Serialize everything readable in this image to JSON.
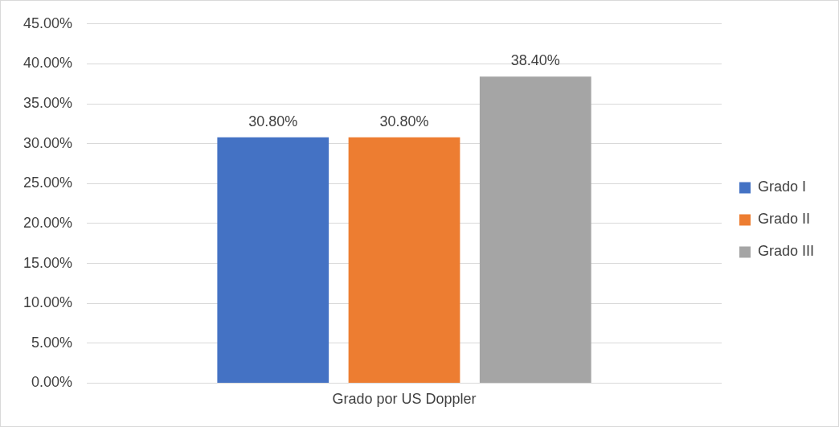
{
  "chart_data": {
    "type": "bar",
    "categories": [
      "Grado por US Doppler"
    ],
    "series": [
      {
        "name": "Grado I",
        "color": "#4472c4",
        "values": [
          30.8
        ],
        "value_labels": [
          "30.80%"
        ]
      },
      {
        "name": "Grado II",
        "color": "#ed7d31",
        "values": [
          30.8
        ],
        "value_labels": [
          "30.80%"
        ]
      },
      {
        "name": "Grado III",
        "color": "#a5a5a5",
        "values": [
          38.4
        ],
        "value_labels": [
          "38.40%"
        ]
      }
    ],
    "ylim": [
      0,
      45
    ],
    "yticks": [
      {
        "value": 0,
        "label": "0.00%"
      },
      {
        "value": 5,
        "label": "5.00%"
      },
      {
        "value": 10,
        "label": "10.00%"
      },
      {
        "value": 15,
        "label": "15.00%"
      },
      {
        "value": 20,
        "label": "20.00%"
      },
      {
        "value": 25,
        "label": "25.00%"
      },
      {
        "value": 30,
        "label": "30.00%"
      },
      {
        "value": 35,
        "label": "35.00%"
      },
      {
        "value": 40,
        "label": "40.00%"
      },
      {
        "value": 45,
        "label": "45.00%"
      }
    ],
    "grid": "y",
    "legend": "right"
  }
}
